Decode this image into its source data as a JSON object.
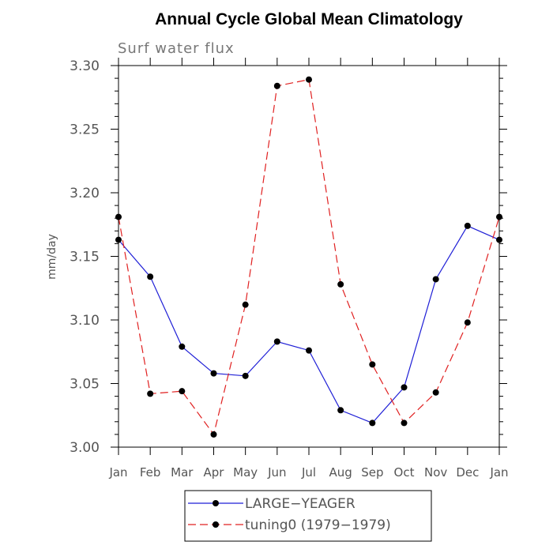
{
  "chart_data": {
    "type": "line",
    "title": "Annual Cycle Global Mean Climatology",
    "subtitle": "Surf water flux",
    "xlabel": "",
    "ylabel": "mm/day",
    "ylim": [
      3.0,
      3.3
    ],
    "yticks": [
      "3.00",
      "3.05",
      "3.10",
      "3.15",
      "3.20",
      "3.25",
      "3.30"
    ],
    "categories": [
      "Jan",
      "Feb",
      "Mar",
      "Apr",
      "May",
      "Jun",
      "Jul",
      "Aug",
      "Sep",
      "Oct",
      "Nov",
      "Dec",
      "Jan"
    ],
    "series": [
      {
        "name": "LARGE−YEAGER",
        "color": "#1f1fd6",
        "style": "solid",
        "values": [
          3.163,
          3.134,
          3.079,
          3.058,
          3.056,
          3.083,
          3.076,
          3.029,
          3.019,
          3.047,
          3.132,
          3.174,
          3.163
        ]
      },
      {
        "name": "tuning0 (1979−1979)",
        "color": "#e02020",
        "style": "dashed",
        "values": [
          3.181,
          3.042,
          3.044,
          3.01,
          3.112,
          3.284,
          3.289,
          3.128,
          3.065,
          3.019,
          3.043,
          3.098,
          3.181
        ]
      }
    ],
    "grid": false,
    "legend_position": "bottom-center"
  }
}
